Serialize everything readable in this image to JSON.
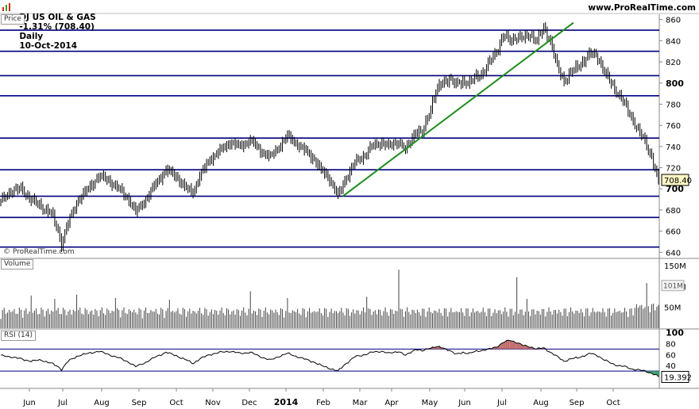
{
  "header": {
    "instrument": "DJ US OIL & GAS",
    "change": "-1.31% (708.40)",
    "period": "Daily",
    "date": "10-Oct-2014",
    "site": "www.ProRealTime.com"
  },
  "watermark": "© ProRealTime.com",
  "panes": {
    "price": "Price",
    "volume": "Volume",
    "rsi": "RSI (14)"
  },
  "colors": {
    "candle": "#000000",
    "hline": "#00007f",
    "trend": "#1e8c1e",
    "rsi_overbought": "#c06a6a",
    "rsi_oversold": "#3a9a6a"
  },
  "chart_data": [
    {
      "type": "candlestick",
      "pane": "price",
      "ylim": [
        635,
        865
      ],
      "yticks": [
        640,
        660,
        680,
        700,
        720,
        740,
        760,
        780,
        800,
        820,
        840,
        860
      ],
      "last_value": "708.40",
      "horizontal_levels": [
        645,
        673,
        693,
        718,
        748,
        788,
        807,
        830,
        850
      ],
      "trendline": {
        "from": [
          "Feb",
          693
        ],
        "to": [
          "Jul",
          857
        ]
      },
      "x_labels": [
        "Jun",
        "Jul",
        "Aug",
        "Sep",
        "Oct",
        "Nov",
        "Dec",
        "2014",
        "Feb",
        "Mar",
        "Apr",
        "May",
        "Jun",
        "Jul",
        "Aug",
        "Sep",
        "Oct"
      ],
      "close_path": [
        [
          0,
          688
        ],
        [
          6,
          698
        ],
        [
          12,
          700
        ],
        [
          18,
          690
        ],
        [
          24,
          683
        ],
        [
          30,
          677
        ],
        [
          34,
          660
        ],
        [
          36,
          648
        ],
        [
          40,
          668
        ],
        [
          46,
          690
        ],
        [
          52,
          700
        ],
        [
          58,
          712
        ],
        [
          64,
          708
        ],
        [
          70,
          700
        ],
        [
          76,
          690
        ],
        [
          80,
          678
        ],
        [
          86,
          690
        ],
        [
          92,
          705
        ],
        [
          98,
          718
        ],
        [
          104,
          712
        ],
        [
          110,
          700
        ],
        [
          114,
          697
        ],
        [
          118,
          712
        ],
        [
          124,
          728
        ],
        [
          130,
          736
        ],
        [
          136,
          744
        ],
        [
          142,
          740
        ],
        [
          148,
          746
        ],
        [
          154,
          736
        ],
        [
          160,
          730
        ],
        [
          166,
          742
        ],
        [
          170,
          750
        ],
        [
          176,
          742
        ],
        [
          182,
          734
        ],
        [
          186,
          728
        ],
        [
          190,
          717
        ],
        [
          194,
          712
        ],
        [
          198,
          700
        ],
        [
          200,
          693
        ],
        [
          204,
          708
        ],
        [
          210,
          725
        ],
        [
          216,
          732
        ],
        [
          220,
          740
        ],
        [
          226,
          744
        ],
        [
          230,
          740
        ],
        [
          236,
          745
        ],
        [
          240,
          736
        ],
        [
          246,
          755
        ],
        [
          250,
          752
        ],
        [
          254,
          772
        ],
        [
          258,
          792
        ],
        [
          262,
          800
        ],
        [
          266,
          805
        ],
        [
          270,
          798
        ],
        [
          274,
          802
        ],
        [
          278,
          800
        ],
        [
          282,
          806
        ],
        [
          286,
          810
        ],
        [
          290,
          820
        ],
        [
          294,
          830
        ],
        [
          298,
          845
        ],
        [
          302,
          840
        ],
        [
          306,
          844
        ],
        [
          310,
          842
        ],
        [
          314,
          846
        ],
        [
          318,
          840
        ],
        [
          322,
          852
        ],
        [
          326,
          840
        ],
        [
          330,
          815
        ],
        [
          334,
          802
        ],
        [
          338,
          810
        ],
        [
          342,
          815
        ],
        [
          346,
          822
        ],
        [
          350,
          828
        ],
        [
          354,
          825
        ],
        [
          358,
          810
        ],
        [
          362,
          800
        ],
        [
          366,
          790
        ],
        [
          370,
          780
        ],
        [
          374,
          768
        ],
        [
          378,
          755
        ],
        [
          382,
          745
        ],
        [
          386,
          730
        ],
        [
          389,
          712
        ],
        [
          390,
          708.4
        ]
      ]
    },
    {
      "type": "bar",
      "pane": "volume",
      "ylim": [
        0,
        165
      ],
      "yticks": [
        50,
        100,
        150
      ],
      "ytick_labels": [
        "50M",
        "100M",
        "150M"
      ],
      "last_value": "101M",
      "spikes": [
        [
          18,
          78
        ],
        [
          32,
          70
        ],
        [
          45,
          80
        ],
        [
          68,
          72
        ],
        [
          100,
          68
        ],
        [
          148,
          88
        ],
        [
          170,
          72
        ],
        [
          217,
          75
        ],
        [
          236,
          140
        ],
        [
          306,
          122
        ],
        [
          312,
          70
        ],
        [
          383,
          108
        ]
      ]
    },
    {
      "type": "line",
      "pane": "rsi",
      "ylim": [
        0,
        105
      ],
      "yticks": [
        20,
        40,
        60,
        80,
        100
      ],
      "levels": [
        30,
        70
      ],
      "last_value": "19.392",
      "path": [
        [
          0,
          58
        ],
        [
          6,
          56
        ],
        [
          12,
          52
        ],
        [
          18,
          48
        ],
        [
          24,
          50
        ],
        [
          30,
          44
        ],
        [
          34,
          38
        ],
        [
          36,
          33
        ],
        [
          40,
          48
        ],
        [
          46,
          58
        ],
        [
          52,
          62
        ],
        [
          58,
          66
        ],
        [
          64,
          60
        ],
        [
          70,
          54
        ],
        [
          76,
          46
        ],
        [
          80,
          38
        ],
        [
          86,
          46
        ],
        [
          92,
          56
        ],
        [
          98,
          64
        ],
        [
          104,
          58
        ],
        [
          110,
          50
        ],
        [
          114,
          44
        ],
        [
          118,
          52
        ],
        [
          124,
          60
        ],
        [
          130,
          64
        ],
        [
          136,
          66
        ],
        [
          142,
          62
        ],
        [
          148,
          64
        ],
        [
          154,
          56
        ],
        [
          160,
          50
        ],
        [
          166,
          58
        ],
        [
          170,
          62
        ],
        [
          176,
          56
        ],
        [
          182,
          50
        ],
        [
          186,
          46
        ],
        [
          190,
          40
        ],
        [
          194,
          36
        ],
        [
          198,
          32
        ],
        [
          200,
          30
        ],
        [
          204,
          42
        ],
        [
          210,
          56
        ],
        [
          216,
          60
        ],
        [
          220,
          64
        ],
        [
          226,
          66
        ],
        [
          230,
          62
        ],
        [
          236,
          66
        ],
        [
          240,
          58
        ],
        [
          246,
          70
        ],
        [
          250,
          66
        ],
        [
          254,
          72
        ],
        [
          258,
          74
        ],
        [
          262,
          72
        ],
        [
          266,
          68
        ],
        [
          270,
          60
        ],
        [
          274,
          64
        ],
        [
          278,
          62
        ],
        [
          282,
          66
        ],
        [
          286,
          68
        ],
        [
          290,
          70
        ],
        [
          294,
          74
        ],
        [
          298,
          82
        ],
        [
          302,
          86
        ],
        [
          306,
          82
        ],
        [
          310,
          76
        ],
        [
          314,
          74
        ],
        [
          318,
          70
        ],
        [
          322,
          72
        ],
        [
          326,
          64
        ],
        [
          330,
          56
        ],
        [
          334,
          48
        ],
        [
          338,
          52
        ],
        [
          342,
          54
        ],
        [
          346,
          58
        ],
        [
          350,
          62
        ],
        [
          354,
          58
        ],
        [
          358,
          50
        ],
        [
          362,
          44
        ],
        [
          366,
          40
        ],
        [
          370,
          38
        ],
        [
          374,
          34
        ],
        [
          378,
          32
        ],
        [
          382,
          30
        ],
        [
          386,
          26
        ],
        [
          389,
          22
        ],
        [
          390,
          19.4
        ]
      ]
    }
  ]
}
